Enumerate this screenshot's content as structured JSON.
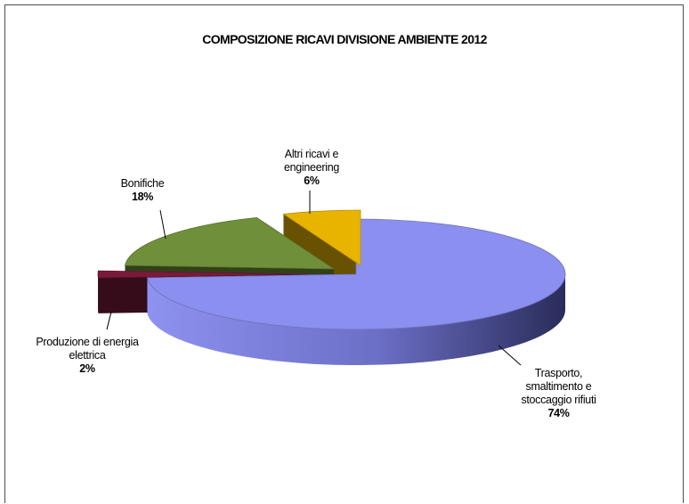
{
  "chart_data": {
    "type": "pie",
    "title": "COMPOSIZIONE RICAVI DIVISIONE AMBIENTE 2012",
    "slices": [
      {
        "label_lines": [
          "Trasporto,",
          "smaltimento e",
          "stoccaggio rifiuti"
        ],
        "percent_text": "74%",
        "value": 74,
        "color": "#8b8fef"
      },
      {
        "label_lines": [
          "Produzione di energia",
          "elettrica"
        ],
        "percent_text": "2%",
        "value": 2,
        "color": "#7a1a3a"
      },
      {
        "label_lines": [
          "Bonifiche"
        ],
        "percent_text": "18%",
        "value": 18,
        "color": "#6f8f3a"
      },
      {
        "label_lines": [
          "Altri ricavi e",
          "engineering"
        ],
        "percent_text": "6%",
        "value": 6,
        "color": "#e8b400"
      }
    ],
    "style": "3d-exploded",
    "legend": "none"
  }
}
